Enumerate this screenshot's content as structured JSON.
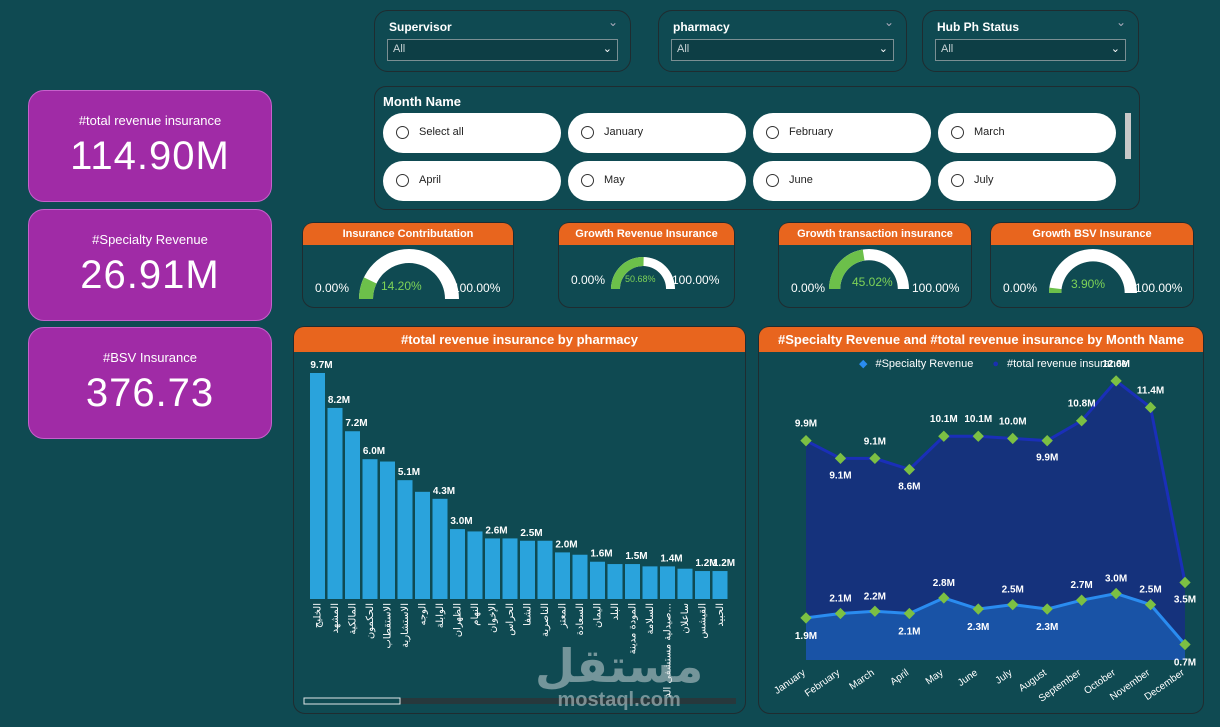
{
  "filters": [
    {
      "label": "Supervisor",
      "value": "All"
    },
    {
      "label": "pharmacy",
      "value": "All"
    },
    {
      "label": "Hub Ph Status",
      "value": "All"
    }
  ],
  "kpis": [
    {
      "label": "#total revenue insurance",
      "value": "114.90M"
    },
    {
      "label": "#Specialty Revenue",
      "value": "26.91M"
    },
    {
      "label": "#BSV Insurance",
      "value": "376.73"
    }
  ],
  "month_slicer": {
    "title": "Month Name",
    "options": [
      "Select all",
      "January",
      "February",
      "March",
      "April",
      "May",
      "June",
      "July"
    ]
  },
  "gauges": [
    {
      "title": "Insurance Contributation",
      "min": "0.00%",
      "max": "100.00%",
      "value": "14.20%",
      "fraction": 0.142
    },
    {
      "title": "Growth Revenue Insurance",
      "min": "0.00%",
      "max": "100.00%",
      "value": "50.68%",
      "fraction": 0.5068
    },
    {
      "title": "Growth transaction insurance",
      "min": "0.00%",
      "max": "100.00%",
      "value": "45.02%",
      "fraction": 0.4502
    },
    {
      "title": "Growth BSV Insurance",
      "min": "0.00%",
      "max": "100.00%",
      "value": "3.90%",
      "fraction": 0.039
    }
  ],
  "chart_data": [
    {
      "type": "bar",
      "title": "#total revenue insurance by pharmacy",
      "categories": [
        "الخليج",
        "المشهد",
        "المالكية",
        "الحكمون",
        "الاستقطاب",
        "الاستشارية",
        "الوجه",
        "الوابلة",
        "الظهران",
        "النهام",
        "الإخوان",
        "الحراس",
        "الشفا",
        "الناصرية",
        "المعتز",
        "السعادة",
        "اليمان",
        "البلد",
        "المودة مدينة",
        "السلامة",
        "صيدلية مستشفى الد...",
        "ساعلان",
        "القيشس",
        "الحبيد"
      ],
      "values": [
        9.7,
        8.2,
        7.2,
        6.0,
        5.9,
        5.1,
        4.6,
        4.3,
        3.0,
        2.9,
        2.6,
        2.6,
        2.5,
        2.5,
        2.0,
        1.9,
        1.6,
        1.5,
        1.5,
        1.4,
        1.4,
        1.3,
        1.2,
        1.2
      ],
      "labels": [
        "9.7M",
        "8.2M",
        "7.2M",
        "6.0M",
        "",
        "5.1M",
        "",
        "4.3M",
        "3.0M",
        "",
        "2.6M",
        "",
        "2.5M",
        "",
        "2.0M",
        "",
        "1.6M",
        "",
        "1.5M",
        "",
        "1.4M",
        "",
        "1.2M",
        "1.2M"
      ],
      "xlabel": "",
      "ylabel": "",
      "ylim": [
        0,
        10
      ]
    },
    {
      "type": "area",
      "title": "#Specialty Revenue and #total revenue insurance by Month Name",
      "categories": [
        "January",
        "February",
        "March",
        "April",
        "May",
        "June",
        "July",
        "August",
        "September",
        "October",
        "November",
        "December"
      ],
      "series": [
        {
          "name": "#Specialty Revenue",
          "values": [
            1.9,
            2.1,
            2.2,
            2.1,
            2.8,
            2.3,
            2.5,
            2.3,
            2.7,
            3.0,
            2.5,
            0.7
          ],
          "labels": [
            "1.9M",
            "2.1M",
            "2.2M",
            "2.1M",
            "2.8M",
            "2.3M",
            "2.5M",
            "2.3M",
            "2.7M",
            "3.0M",
            "2.5M",
            "0.7M"
          ]
        },
        {
          "name": "#total revenue insurance",
          "values": [
            9.9,
            9.1,
            9.1,
            8.6,
            10.1,
            10.1,
            10.0,
            9.9,
            10.8,
            12.6,
            11.4,
            3.5
          ],
          "labels": [
            "9.9M",
            "9.1M",
            "9.1M",
            "8.6M",
            "10.1M",
            "10.1M",
            "10.0M",
            "9.9M",
            "10.8M",
            "12.6M",
            "11.4M",
            "3.5M"
          ]
        }
      ],
      "legend": "top",
      "ylim": [
        0,
        13
      ]
    }
  ],
  "watermark": {
    "arabic": "مستقل",
    "latin": "mostaql.com"
  }
}
